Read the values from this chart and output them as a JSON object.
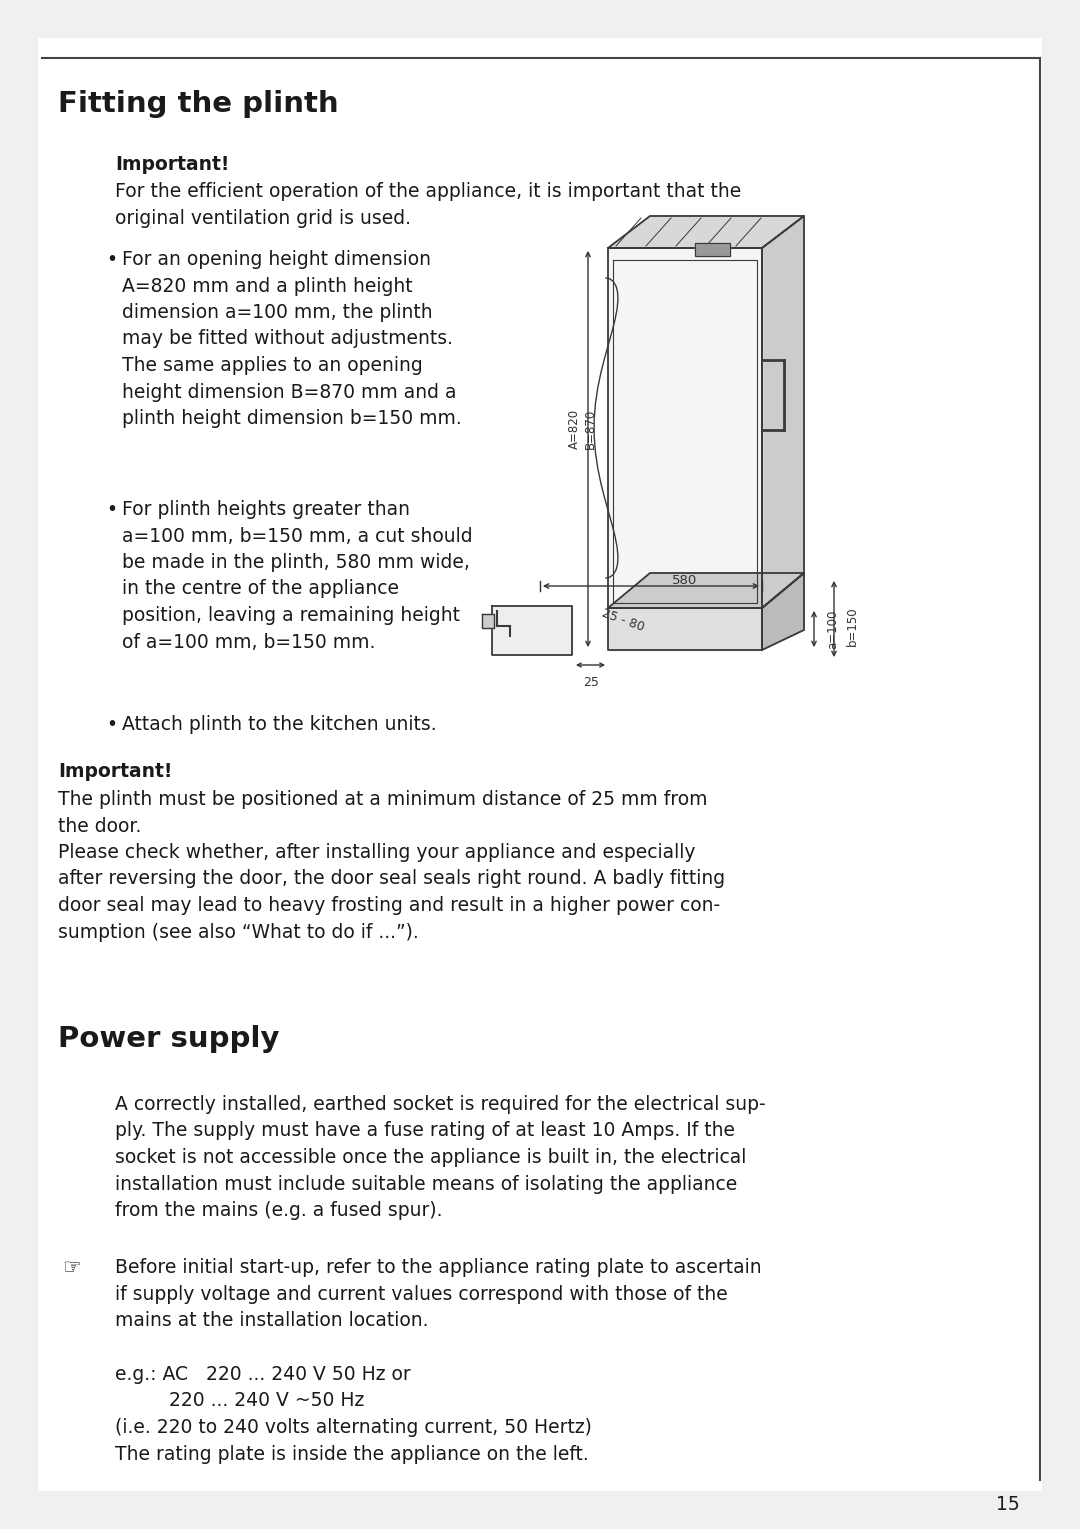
{
  "title1": "Fitting the plinth",
  "title2": "Power supply",
  "bg_color": "#ffffff",
  "page_bg": "#f0f0f0",
  "text_color": "#1a1a1a",
  "page_number": "15",
  "important1_label": "Important!",
  "important1_text": "For the efficient operation of the appliance, it is important that the\noriginal ventilation grid is used.",
  "bullet1": "For an opening height dimension\nA=820 mm and a plinth height\ndimension a=100 mm, the plinth\nmay be fitted without adjustments.\nThe same applies to an opening\nheight dimension B=870 mm and a\nplinth height dimension b=150 mm.",
  "bullet2": "For plinth heights greater than\na=100 mm, b=150 mm, a cut should\nbe made in the plinth, 580 mm wide,\nin the centre of the appliance\nposition, leaving a remaining height\nof a=100 mm, b=150 mm.",
  "bullet3": "Attach plinth to the kitchen units.",
  "important2_label": "Important!",
  "important2_text": "The plinth must be positioned at a minimum distance of 25 mm from\nthe door.\nPlease check whether, after installing your appliance and especially\nafter reversing the door, the door seal seals right round. A badly fitting\ndoor seal may lead to heavy frosting and result in a higher power con-\nsumption (see also “What to do if ...”).",
  "power_supply_para1": "A correctly installed, earthed socket is required for the electrical sup-\nply. The supply must have a fuse rating of at least 10 Amps. If the\nsocket is not accessible once the appliance is built in, the electrical\ninstallation must include suitable means of isolating the appliance\nfrom the mains (e.g. a fused spur).",
  "power_supply_para2": "Before initial start-up, refer to the appliance rating plate to ascertain\nif supply voltage and current values correspond with those of the\nmains at the installation location.",
  "power_supply_para3": "e.g.: AC   220 ... 240 V 50 Hz or\n         220 ... 240 V ~50 Hz\n(i.e. 220 to 240 volts alternating current, 50 Hertz)\nThe rating plate is inside the appliance on the left."
}
